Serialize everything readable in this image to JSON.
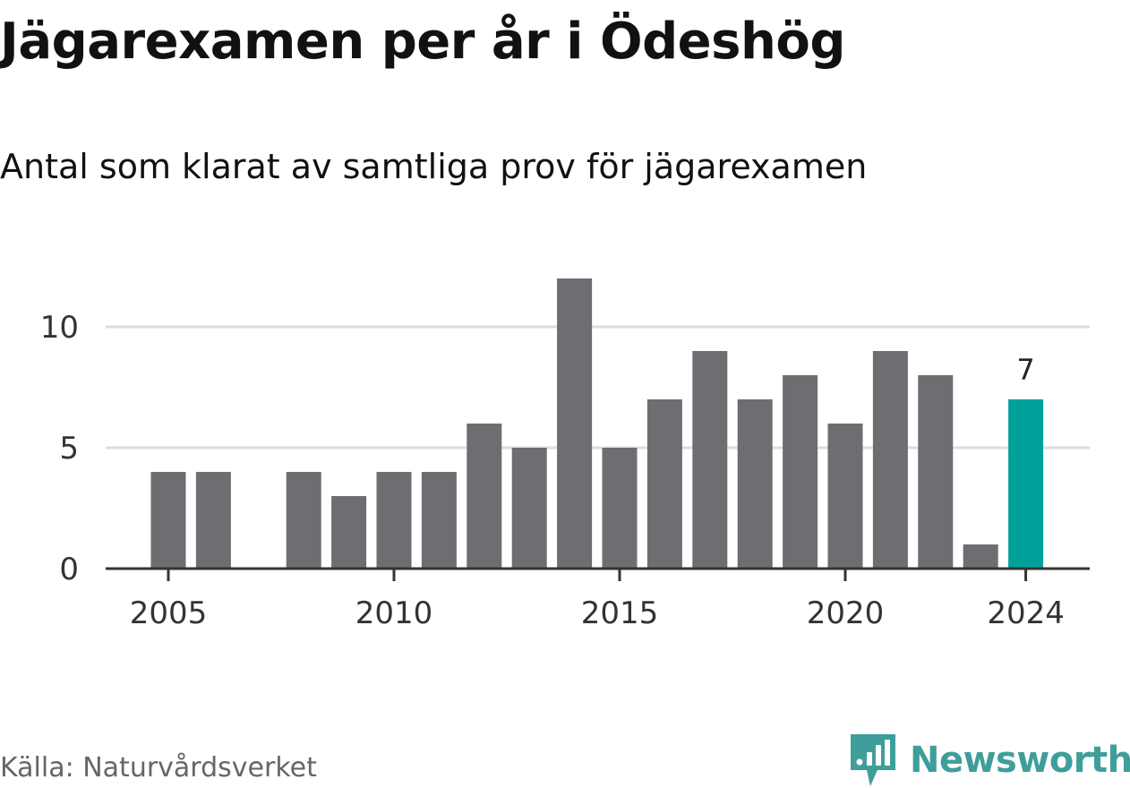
{
  "title": "Jägarexamen per år i Ödeshög",
  "subtitle": "Antal som klarat av samtliga prov för jägarexamen",
  "source": "Källa: Naturvårdsverket",
  "brand": {
    "name": "Newsworthy",
    "logo_icon": "newsworthy-chart-logo-icon",
    "color": "#3f9e9a"
  },
  "chart_data": {
    "type": "bar",
    "x": [
      2005,
      2006,
      2007,
      2008,
      2009,
      2010,
      2011,
      2012,
      2013,
      2014,
      2015,
      2016,
      2017,
      2018,
      2019,
      2020,
      2021,
      2022,
      2023,
      2024
    ],
    "values": [
      4,
      4,
      null,
      4,
      3,
      4,
      4,
      6,
      5,
      12,
      5,
      7,
      9,
      7,
      8,
      6,
      9,
      8,
      1,
      7
    ],
    "highlight": {
      "x": 2024,
      "label": "7"
    },
    "x_tick_labels": [
      "2005",
      "2010",
      "2015",
      "2020",
      "2024"
    ],
    "y_tick_labels": [
      "0",
      "5",
      "10"
    ],
    "ylim": [
      0,
      12
    ],
    "grid": true,
    "colors": {
      "bar": "#6e6d72",
      "highlight": "#00a19a",
      "grid": "#dddddd",
      "axis": "#333333"
    }
  }
}
